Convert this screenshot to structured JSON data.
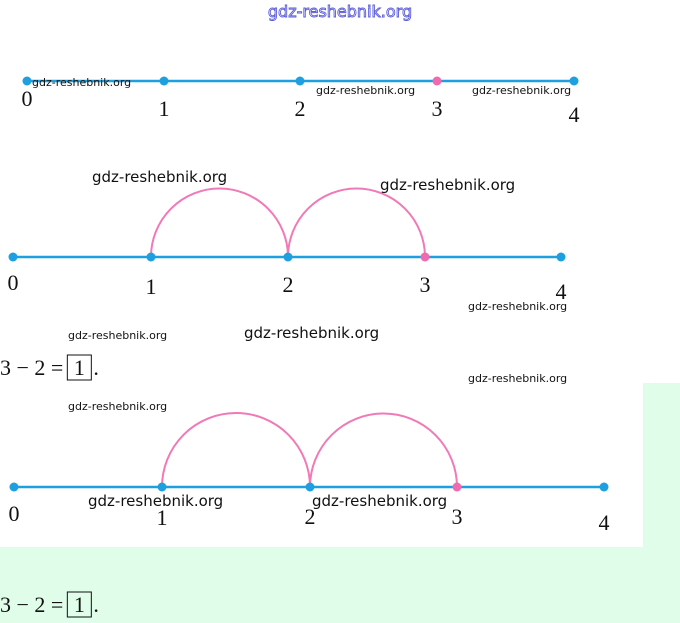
{
  "header_watermark": "gdz-reshebnik.org",
  "number_lines": [
    {
      "labels": [
        "0",
        "1",
        "2",
        "3",
        "4"
      ]
    },
    {
      "labels": [
        "0",
        "1",
        "2",
        "3",
        "4"
      ]
    },
    {
      "labels": [
        "0",
        "1",
        "2",
        "3",
        "4"
      ]
    }
  ],
  "watermarks": [
    "gdz-reshebnik.org",
    "gdz-reshebnik.org",
    "gdz-reshebnik.org",
    "gdz-reshebnik.org",
    "gdz-reshebnik.org",
    "gdz-reshebnik.org",
    "gdz-reshebnik.org",
    "gdz-reshebnik.org",
    "gdz-reshebnik.org",
    "gdz-reshebnik.org",
    "gdz-reshebnik.org",
    "gdz-reshebnik.org"
  ],
  "equations": [
    {
      "expression": "3 − 2 =",
      "answer": "1",
      "end": "."
    },
    {
      "expression": "3 − 2 =",
      "answer": "1",
      "end": "."
    }
  ]
}
